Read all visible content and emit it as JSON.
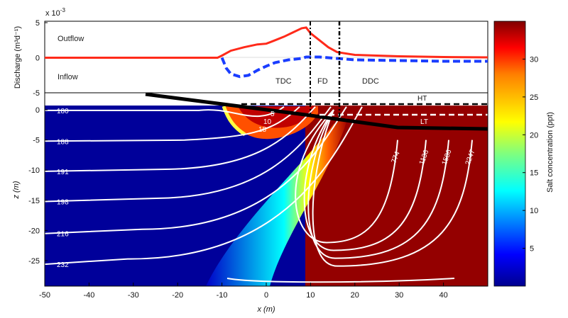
{
  "chart_data": [
    {
      "type": "line",
      "ylabel": "Discharge (m³d⁻¹)",
      "yexponent": "x 10",
      "yexponent_power": "-3",
      "ylim": [
        -5,
        5
      ],
      "xlim": [
        -50,
        50
      ],
      "yticks": [
        "5",
        "0",
        "-5"
      ],
      "annotations": {
        "outflow": "Outflow",
        "inflow": "Inflow",
        "tdc": "TDC",
        "fd": "FD",
        "ddc": "DDC"
      },
      "series": [
        {
          "color": "#ff2a1a",
          "x": [
            -50,
            -11,
            -10,
            -8,
            -5,
            -2,
            0,
            2,
            4,
            6,
            8,
            9,
            10,
            12,
            14,
            16,
            20,
            25,
            30,
            40,
            50
          ],
          "y": [
            0,
            0,
            0.3,
            1.0,
            1.5,
            1.9,
            2.0,
            2.5,
            3.0,
            3.6,
            4.2,
            4.3,
            3.5,
            2.5,
            1.5,
            0.8,
            0.4,
            0.3,
            0.2,
            0.1,
            0.05
          ]
        },
        {
          "color": "#1a3dff",
          "x": [
            -10,
            -9,
            -8,
            -6,
            -4,
            -2,
            0,
            2,
            5,
            8,
            9,
            12,
            16,
            20,
            30,
            40,
            50
          ],
          "y": [
            0,
            -1.5,
            -2.3,
            -2.7,
            -2.5,
            -1.8,
            -1.2,
            -0.7,
            -0.3,
            -0.1,
            0.1,
            0.1,
            -0.1,
            -0.3,
            -0.4,
            -0.5,
            -0.5
          ]
        }
      ]
    },
    {
      "type": "heatmap",
      "xlabel": "x (m)",
      "ylabel": "z (m)",
      "xlim": [
        -50,
        50
      ],
      "ylim": [
        -30,
        2
      ],
      "xticks": [
        "-50",
        "-40",
        "-30",
        "-20",
        "-10",
        "0",
        "10",
        "20",
        "30",
        "40"
      ],
      "yticks": [
        "0",
        "-5",
        "-10",
        "-15",
        "-20",
        "-25"
      ],
      "colorbar_label": "Salt concentration (ppt)",
      "colorbar_range": [
        0,
        35
      ],
      "colorbar_ticks": [
        "30",
        "25",
        "20",
        "15",
        "10",
        "5"
      ],
      "tide_labels": {
        "high": "HT",
        "low": "LT"
      },
      "fresh_contour_labels": [
        "180",
        "188",
        "191",
        "198",
        "216",
        "232"
      ],
      "salt_contour_labels": [
        "5",
        "10",
        "18"
      ],
      "recirc_contour_labels": [
        "774",
        "1136",
        "1586",
        "2247"
      ]
    }
  ]
}
